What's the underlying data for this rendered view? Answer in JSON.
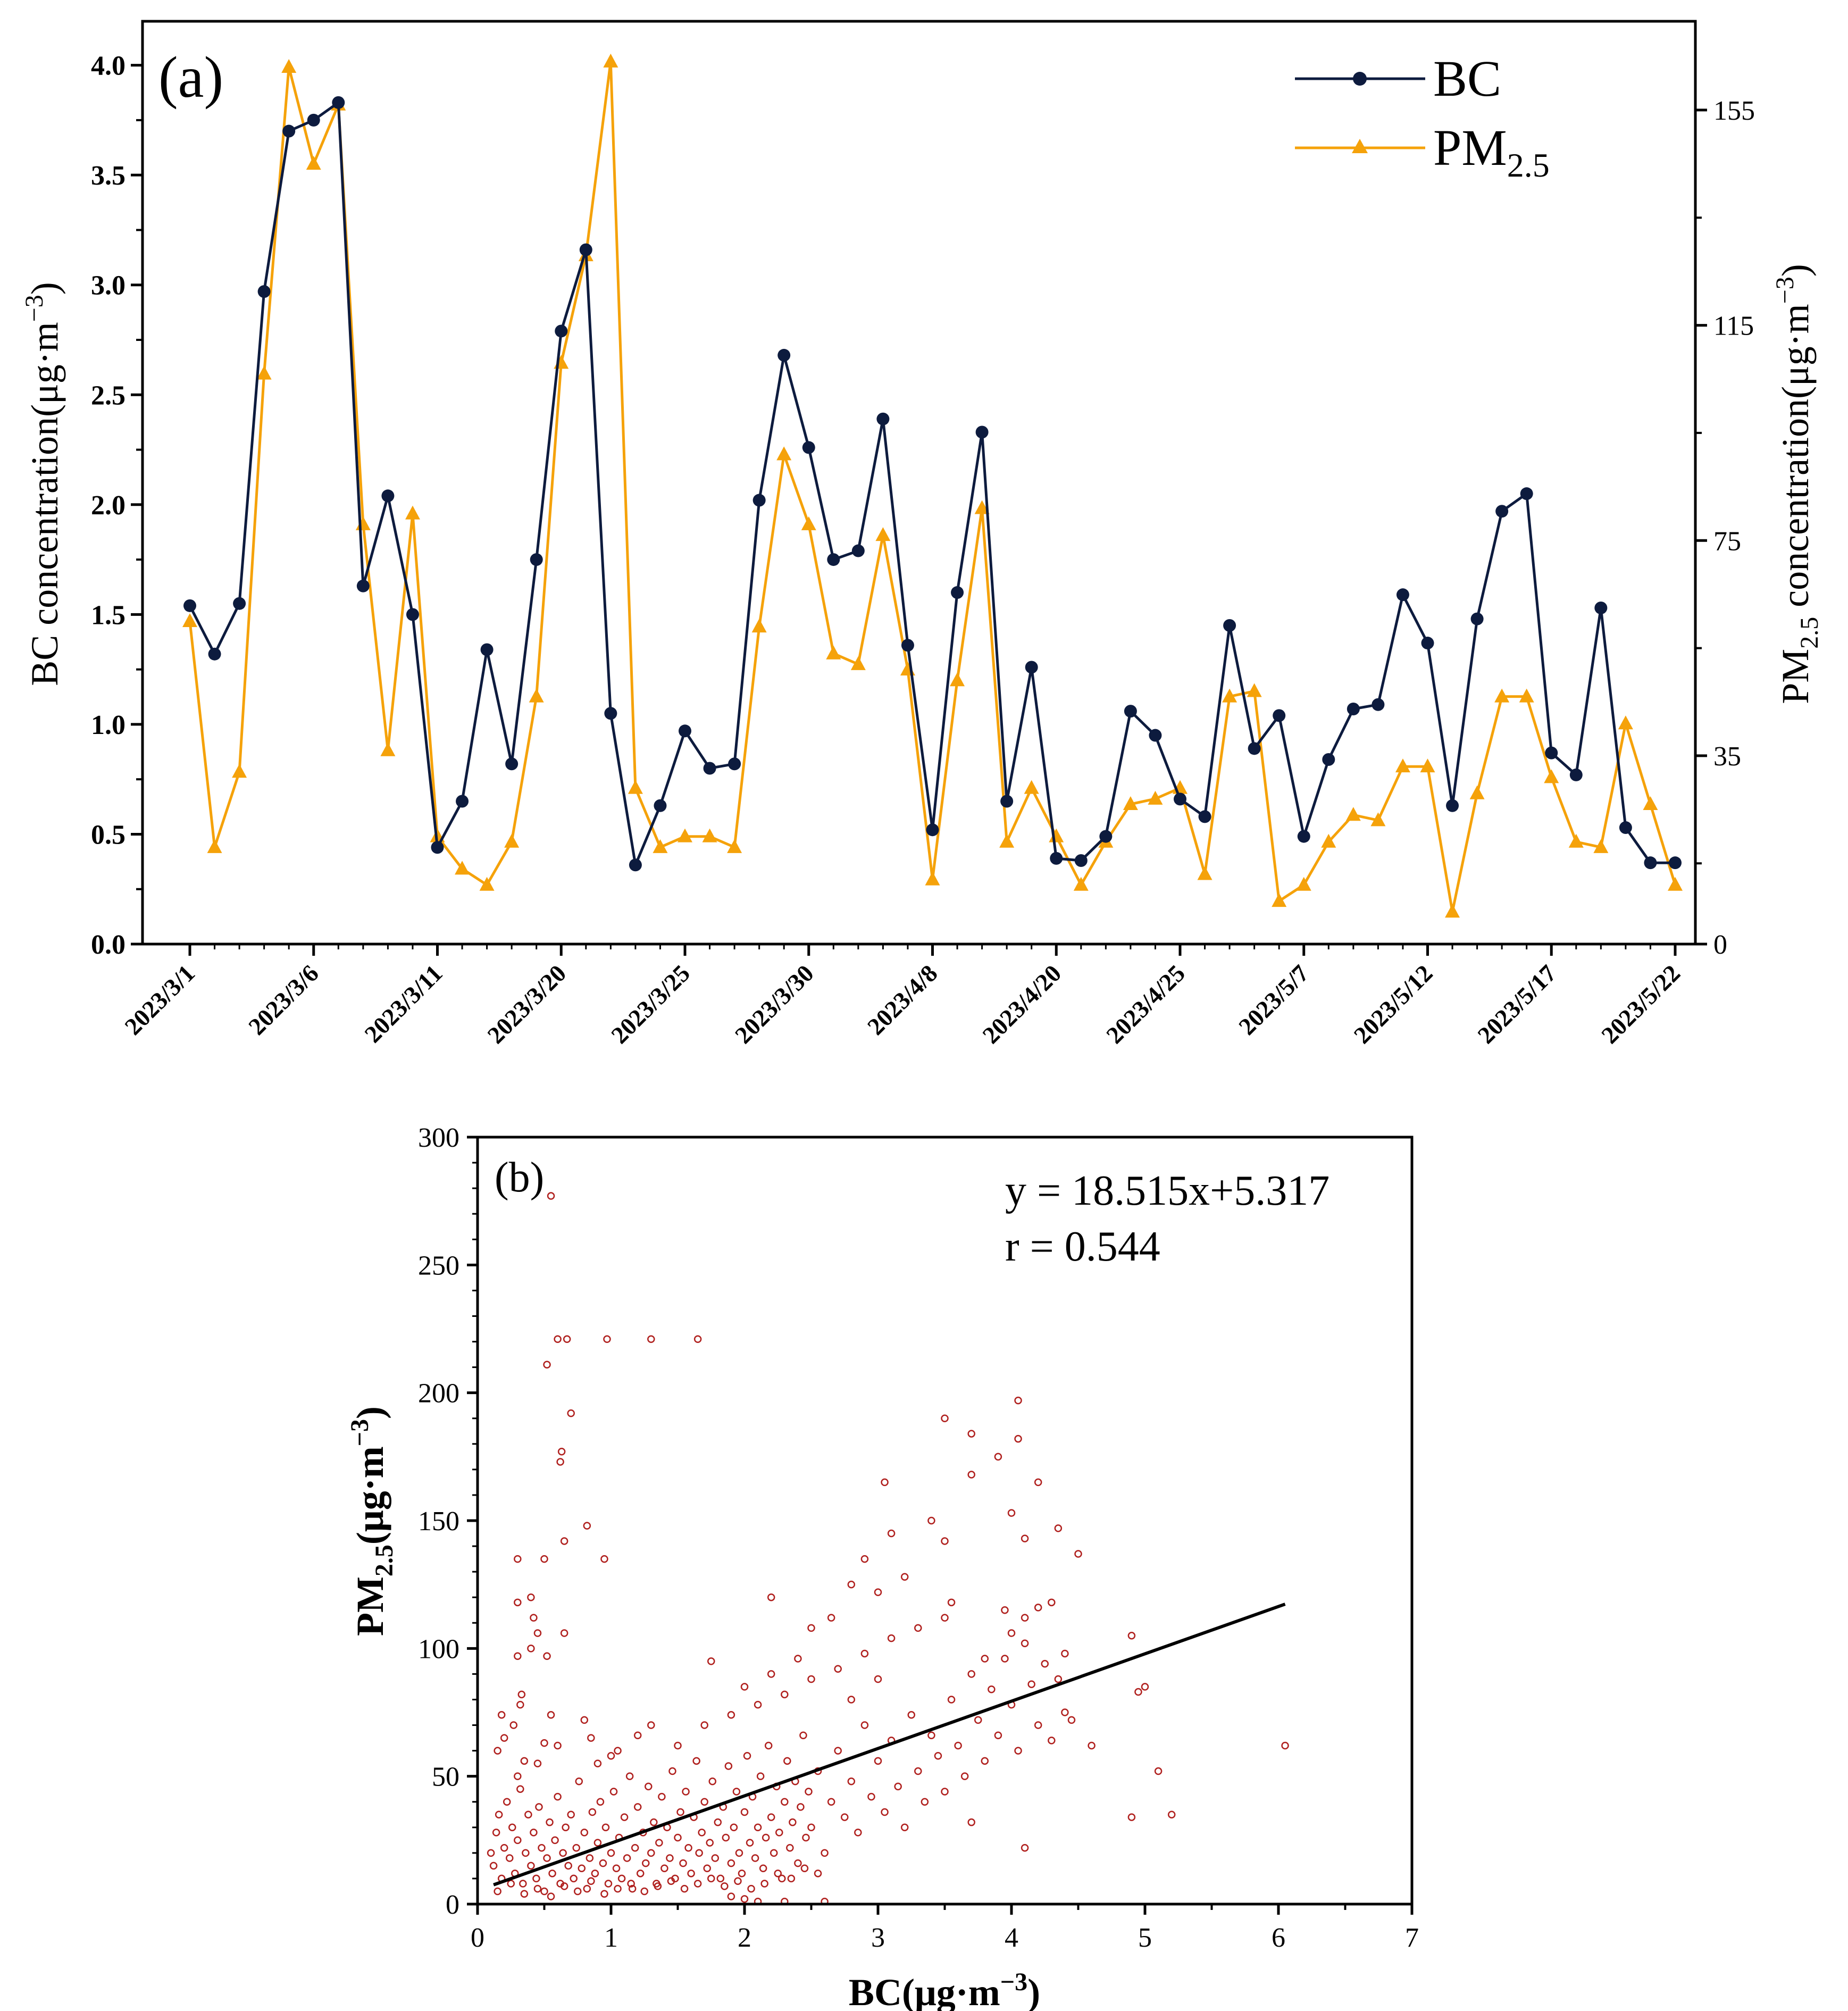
{
  "chart_data": [
    {
      "type": "line",
      "panel_label": "(a)",
      "ylabel_left": "BC concentration(μg·m",
      "ylabel_left_sup": "−3",
      "ylabel_left_close": ")",
      "ylabel_right_prefix": "PM",
      "ylabel_right_sub": "2.5",
      "ylabel_right_mid": " concentration(μg·m",
      "ylabel_right_sup": "−3",
      "ylabel_right_close": ")",
      "ylim_left": [
        0,
        4.2
      ],
      "ylim_right": [
        0,
        171.5
      ],
      "left_ticks": [
        "0.0",
        "0.5",
        "1.0",
        "1.5",
        "2.0",
        "2.5",
        "3.0",
        "3.5",
        "4.0"
      ],
      "right_ticks": [
        "0",
        "35",
        "75",
        "115",
        "155"
      ],
      "x_tick_labels": [
        {
          "index": 0,
          "label": "2023/3/1"
        },
        {
          "index": 5,
          "label": "2023/3/6"
        },
        {
          "index": 10,
          "label": "2023/3/11"
        },
        {
          "index": 15,
          "label": "2023/3/20"
        },
        {
          "index": 20,
          "label": "2023/3/25"
        },
        {
          "index": 25,
          "label": "2023/3/30"
        },
        {
          "index": 30,
          "label": "2023/4/8"
        },
        {
          "index": 35,
          "label": "2023/4/20"
        },
        {
          "index": 40,
          "label": "2023/4/25"
        },
        {
          "index": 45,
          "label": "2023/5/7"
        },
        {
          "index": 50,
          "label": "2023/5/12"
        },
        {
          "index": 55,
          "label": "2023/5/17"
        },
        {
          "index": 60,
          "label": "2023/5/22"
        }
      ],
      "legend": [
        {
          "name": "BC",
          "color": "#0d1b3e",
          "marker": "circle"
        },
        {
          "name_prefix": "PM",
          "name_sub": "2.5",
          "color": "#f5a20a",
          "marker": "triangle"
        }
      ],
      "legend_position": "top-right",
      "series": [
        {
          "name": "BC",
          "axis": "left",
          "color": "#0d1b3e",
          "values": [
            1.54,
            1.32,
            1.55,
            2.97,
            3.7,
            3.75,
            3.83,
            1.63,
            2.04,
            1.5,
            0.44,
            0.65,
            1.34,
            0.82,
            1.75,
            2.79,
            3.16,
            1.05,
            0.36,
            0.63,
            0.97,
            0.8,
            0.82,
            2.02,
            2.68,
            2.26,
            1.75,
            1.79,
            2.39,
            1.36,
            0.52,
            1.6,
            2.33,
            0.65,
            1.26,
            0.39,
            0.38,
            0.49,
            1.06,
            0.95,
            0.66,
            0.58,
            1.45,
            0.89,
            1.04,
            0.49,
            0.84,
            1.07,
            1.09,
            1.59,
            1.37,
            0.63,
            1.48,
            1.97,
            2.05,
            0.87,
            0.77,
            1.53,
            0.53,
            0.37,
            0.37
          ]
        },
        {
          "name": "PM2.5",
          "axis": "right",
          "color": "#f5a20a",
          "values": [
            60,
            18,
            32,
            106,
            163,
            145,
            156,
            78,
            36,
            80,
            20,
            14,
            11,
            19,
            46,
            108,
            128,
            164,
            29,
            18,
            20,
            20,
            18,
            59,
            91,
            78,
            54,
            52,
            76,
            51,
            12,
            49,
            81,
            19,
            29,
            20,
            11,
            19,
            26,
            27,
            29,
            13,
            46,
            47,
            8,
            11,
            19,
            24,
            23,
            33,
            33,
            6,
            28,
            46,
            46,
            31,
            19,
            18,
            41,
            26,
            11
          ]
        }
      ]
    },
    {
      "type": "scatter",
      "panel_label": "(b)",
      "xlabel": "BC(μg·m",
      "xlabel_sup": "−3",
      "xlabel_close": ")",
      "ylabel_prefix": "PM",
      "ylabel_sub": "2.5",
      "ylabel_mid": "(μg·m",
      "ylabel_sup": "−3",
      "ylabel_close": ")",
      "xlim": [
        0,
        7
      ],
      "ylim": [
        0,
        300
      ],
      "x_ticks": [
        "0",
        "1",
        "2",
        "3",
        "4",
        "5",
        "6",
        "7"
      ],
      "y_ticks": [
        "0",
        "50",
        "100",
        "150",
        "200",
        "250",
        "300"
      ],
      "equation": "y = 18.515x+5.317",
      "r_text": "r = 0.544",
      "regression": {
        "slope": 18.515,
        "intercept": 5.317,
        "x_range": [
          0.12,
          6.05
        ],
        "color": "#000000"
      },
      "marker_color": "#b0201e",
      "points": [
        [
          0.55,
          277
        ],
        [
          0.6,
          221
        ],
        [
          0.67,
          221
        ],
        [
          0.97,
          221
        ],
        [
          1.3,
          221
        ],
        [
          1.65,
          221
        ],
        [
          0.52,
          211
        ],
        [
          0.7,
          192
        ],
        [
          0.63,
          177
        ],
        [
          0.62,
          173
        ],
        [
          0.82,
          148
        ],
        [
          0.65,
          142
        ],
        [
          0.5,
          135
        ],
        [
          0.3,
          135
        ],
        [
          0.95,
          135
        ],
        [
          0.4,
          120
        ],
        [
          0.3,
          118
        ],
        [
          0.42,
          112
        ],
        [
          0.45,
          106
        ],
        [
          0.65,
          106
        ],
        [
          0.3,
          97
        ],
        [
          0.52,
          97
        ],
        [
          0.4,
          100
        ],
        [
          0.33,
          82
        ],
        [
          0.32,
          78
        ],
        [
          0.18,
          74
        ],
        [
          0.55,
          74
        ],
        [
          0.8,
          72
        ],
        [
          0.27,
          70
        ],
        [
          0.2,
          65
        ],
        [
          0.5,
          63
        ],
        [
          0.15,
          60
        ],
        [
          0.35,
          56
        ],
        [
          0.9,
          55
        ],
        [
          1.05,
          60
        ],
        [
          1.3,
          70
        ],
        [
          1.75,
          95
        ],
        [
          2.0,
          85
        ],
        [
          2.2,
          120
        ],
        [
          2.5,
          108
        ],
        [
          2.8,
          125
        ],
        [
          3.05,
          165
        ],
        [
          3.1,
          145
        ],
        [
          3.4,
          150
        ],
        [
          3.5,
          142
        ],
        [
          3.5,
          190
        ],
        [
          3.7,
          184
        ],
        [
          3.9,
          175
        ],
        [
          3.7,
          168
        ],
        [
          4.05,
          182
        ],
        [
          4.05,
          197
        ],
        [
          4.2,
          165
        ],
        [
          4.1,
          143
        ],
        [
          4.0,
          153
        ],
        [
          4.35,
          147
        ],
        [
          4.5,
          137
        ],
        [
          3.95,
          115
        ],
        [
          4.1,
          112
        ],
        [
          4.3,
          118
        ],
        [
          3.55,
          118
        ],
        [
          3.0,
          122
        ],
        [
          2.65,
          112
        ],
        [
          3.2,
          128
        ],
        [
          2.9,
          135
        ],
        [
          4.9,
          105
        ],
        [
          4.95,
          83
        ],
        [
          5.0,
          85
        ],
        [
          4.4,
          75
        ],
        [
          4.6,
          62
        ],
        [
          5.1,
          52
        ],
        [
          5.2,
          35
        ],
        [
          4.9,
          34
        ],
        [
          6.05,
          62
        ],
        [
          4.1,
          22
        ],
        [
          3.7,
          32
        ],
        [
          0.1,
          20
        ],
        [
          0.12,
          15
        ],
        [
          0.14,
          28
        ],
        [
          0.16,
          35
        ],
        [
          0.18,
          10
        ],
        [
          0.2,
          22
        ],
        [
          0.22,
          40
        ],
        [
          0.24,
          18
        ],
        [
          0.26,
          30
        ],
        [
          0.28,
          12
        ],
        [
          0.3,
          25
        ],
        [
          0.32,
          45
        ],
        [
          0.34,
          8
        ],
        [
          0.36,
          20
        ],
        [
          0.38,
          35
        ],
        [
          0.4,
          15
        ],
        [
          0.42,
          28
        ],
        [
          0.44,
          10
        ],
        [
          0.46,
          38
        ],
        [
          0.48,
          22
        ],
        [
          0.5,
          5
        ],
        [
          0.52,
          18
        ],
        [
          0.54,
          32
        ],
        [
          0.56,
          12
        ],
        [
          0.58,
          25
        ],
        [
          0.6,
          42
        ],
        [
          0.62,
          8
        ],
        [
          0.64,
          20
        ],
        [
          0.66,
          30
        ],
        [
          0.68,
          15
        ],
        [
          0.7,
          35
        ],
        [
          0.72,
          10
        ],
        [
          0.74,
          22
        ],
        [
          0.76,
          48
        ],
        [
          0.78,
          14
        ],
        [
          0.8,
          28
        ],
        [
          0.82,
          6
        ],
        [
          0.84,
          18
        ],
        [
          0.86,
          36
        ],
        [
          0.88,
          12
        ],
        [
          0.9,
          24
        ],
        [
          0.92,
          40
        ],
        [
          0.94,
          16
        ],
        [
          0.96,
          30
        ],
        [
          0.98,
          8
        ],
        [
          1.0,
          20
        ],
        [
          1.02,
          44
        ],
        [
          1.04,
          14
        ],
        [
          1.06,
          26
        ],
        [
          1.08,
          10
        ],
        [
          1.1,
          34
        ],
        [
          1.12,
          18
        ],
        [
          1.14,
          50
        ],
        [
          1.16,
          6
        ],
        [
          1.18,
          22
        ],
        [
          1.2,
          38
        ],
        [
          1.22,
          12
        ],
        [
          1.24,
          28
        ],
        [
          1.26,
          16
        ],
        [
          1.28,
          46
        ],
        [
          1.3,
          20
        ],
        [
          1.32,
          32
        ],
        [
          1.34,
          8
        ],
        [
          1.36,
          24
        ],
        [
          1.38,
          42
        ],
        [
          1.4,
          14
        ],
        [
          1.42,
          30
        ],
        [
          1.44,
          18
        ],
        [
          1.46,
          52
        ],
        [
          1.48,
          10
        ],
        [
          1.5,
          26
        ],
        [
          1.52,
          36
        ],
        [
          1.54,
          16
        ],
        [
          1.56,
          44
        ],
        [
          1.58,
          22
        ],
        [
          1.6,
          12
        ],
        [
          1.62,
          34
        ],
        [
          1.64,
          56
        ],
        [
          1.66,
          20
        ],
        [
          1.68,
          28
        ],
        [
          1.7,
          40
        ],
        [
          1.72,
          14
        ],
        [
          1.74,
          24
        ],
        [
          1.76,
          48
        ],
        [
          1.78,
          18
        ],
        [
          1.8,
          32
        ],
        [
          1.82,
          10
        ],
        [
          1.84,
          38
        ],
        [
          1.86,
          26
        ],
        [
          1.88,
          54
        ],
        [
          1.9,
          16
        ],
        [
          1.92,
          30
        ],
        [
          1.94,
          44
        ],
        [
          1.96,
          20
        ],
        [
          1.98,
          12
        ],
        [
          2.0,
          36
        ],
        [
          2.02,
          58
        ],
        [
          2.04,
          24
        ],
        [
          2.06,
          42
        ],
        [
          2.08,
          18
        ],
        [
          2.1,
          30
        ],
        [
          2.12,
          50
        ],
        [
          2.14,
          14
        ],
        [
          2.16,
          26
        ],
        [
          2.18,
          62
        ],
        [
          2.2,
          34
        ],
        [
          2.22,
          20
        ],
        [
          2.24,
          46
        ],
        [
          2.26,
          28
        ],
        [
          2.28,
          10
        ],
        [
          2.3,
          40
        ],
        [
          2.32,
          56
        ],
        [
          2.34,
          22
        ],
        [
          2.36,
          32
        ],
        [
          2.38,
          48
        ],
        [
          2.4,
          16
        ],
        [
          2.42,
          38
        ],
        [
          2.44,
          66
        ],
        [
          2.46,
          26
        ],
        [
          2.48,
          44
        ],
        [
          2.5,
          30
        ],
        [
          2.55,
          52
        ],
        [
          2.6,
          20
        ],
        [
          2.65,
          40
        ],
        [
          2.7,
          60
        ],
        [
          2.75,
          34
        ],
        [
          2.8,
          48
        ],
        [
          2.85,
          28
        ],
        [
          2.9,
          70
        ],
        [
          2.95,
          42
        ],
        [
          3.0,
          56
        ],
        [
          3.05,
          36
        ],
        [
          3.1,
          64
        ],
        [
          3.15,
          46
        ],
        [
          3.2,
          30
        ],
        [
          3.25,
          74
        ],
        [
          3.3,
          52
        ],
        [
          3.35,
          40
        ],
        [
          3.4,
          66
        ],
        [
          3.45,
          58
        ],
        [
          3.5,
          44
        ],
        [
          3.55,
          80
        ],
        [
          3.6,
          62
        ],
        [
          3.65,
          50
        ],
        [
          3.7,
          90
        ],
        [
          3.75,
          72
        ],
        [
          3.8,
          56
        ],
        [
          3.85,
          84
        ],
        [
          3.9,
          66
        ],
        [
          3.95,
          96
        ],
        [
          4.0,
          78
        ],
        [
          4.05,
          60
        ],
        [
          4.1,
          102
        ],
        [
          4.15,
          86
        ],
        [
          4.2,
          70
        ],
        [
          4.25,
          94
        ],
        [
          4.3,
          64
        ],
        [
          4.35,
          88
        ],
        [
          4.4,
          98
        ],
        [
          4.45,
          72
        ],
        [
          0.15,
          5
        ],
        [
          0.25,
          8
        ],
        [
          0.35,
          4
        ],
        [
          0.45,
          6
        ],
        [
          0.55,
          3
        ],
        [
          0.65,
          7
        ],
        [
          0.75,
          5
        ],
        [
          0.85,
          9
        ],
        [
          0.95,
          4
        ],
        [
          1.05,
          6
        ],
        [
          1.15,
          8
        ],
        [
          1.25,
          5
        ],
        [
          1.35,
          7
        ],
        [
          1.45,
          9
        ],
        [
          1.55,
          6
        ],
        [
          1.65,
          8
        ],
        [
          1.75,
          10
        ],
        [
          1.85,
          7
        ],
        [
          1.95,
          9
        ],
        [
          2.05,
          6
        ],
        [
          2.15,
          8
        ],
        [
          2.25,
          12
        ],
        [
          2.35,
          10
        ],
        [
          2.45,
          14
        ],
        [
          2.55,
          12
        ],
        [
          2.6,
          1
        ],
        [
          2.3,
          1
        ],
        [
          2.1,
          1
        ],
        [
          2.0,
          2
        ],
        [
          1.9,
          3
        ],
        [
          0.3,
          50
        ],
        [
          0.45,
          55
        ],
        [
          0.6,
          62
        ],
        [
          0.85,
          65
        ],
        [
          1.0,
          58
        ],
        [
          1.2,
          66
        ],
        [
          1.5,
          62
        ],
        [
          1.7,
          70
        ],
        [
          1.9,
          74
        ],
        [
          2.1,
          78
        ],
        [
          2.3,
          82
        ],
        [
          2.5,
          88
        ],
        [
          2.7,
          92
        ],
        [
          2.9,
          98
        ],
        [
          3.1,
          104
        ],
        [
          3.3,
          108
        ],
        [
          3.5,
          112
        ],
        [
          3.8,
          96
        ],
        [
          4.0,
          106
        ],
        [
          4.2,
          116
        ],
        [
          2.2,
          90
        ],
        [
          2.4,
          96
        ],
        [
          2.8,
          80
        ],
        [
          3.0,
          88
        ]
      ]
    }
  ]
}
